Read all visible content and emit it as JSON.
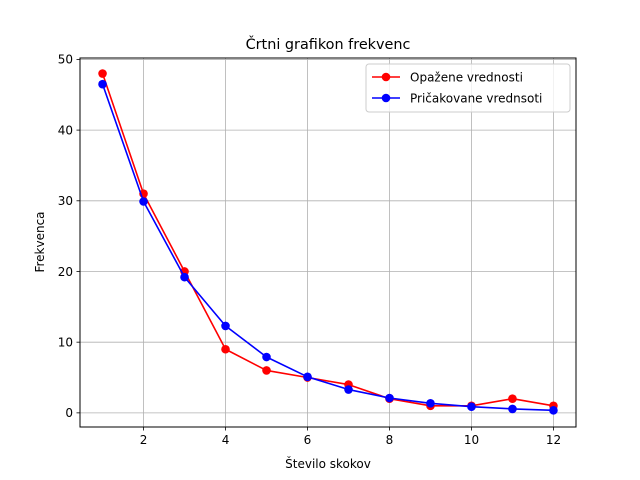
{
  "chart_data": {
    "type": "line",
    "title": "Črtni grafikon frekvenc",
    "xlabel": "Število skokov",
    "ylabel": "Frekvenca",
    "x": [
      1,
      2,
      3,
      4,
      5,
      6,
      7,
      8,
      9,
      10,
      11,
      12
    ],
    "xlim": [
      0.45,
      12.55
    ],
    "ylim": [
      -2.0,
      50.2
    ],
    "xticks": [
      2,
      4,
      6,
      8,
      10,
      12
    ],
    "yticks": [
      0,
      10,
      20,
      30,
      40,
      50
    ],
    "grid": true,
    "legend": "top-right",
    "series": [
      {
        "name": "Opažene vrednosti",
        "color": "#ff0000",
        "values": [
          48,
          31,
          20,
          9,
          6,
          5,
          4,
          2,
          1,
          1,
          2,
          1
        ]
      },
      {
        "name": "Pričakovane vrednsoti",
        "color": "#0000ff",
        "values": [
          46.5,
          29.9,
          19.2,
          12.3,
          7.9,
          5.1,
          3.3,
          2.1,
          1.35,
          0.87,
          0.56,
          0.36
        ]
      }
    ]
  }
}
